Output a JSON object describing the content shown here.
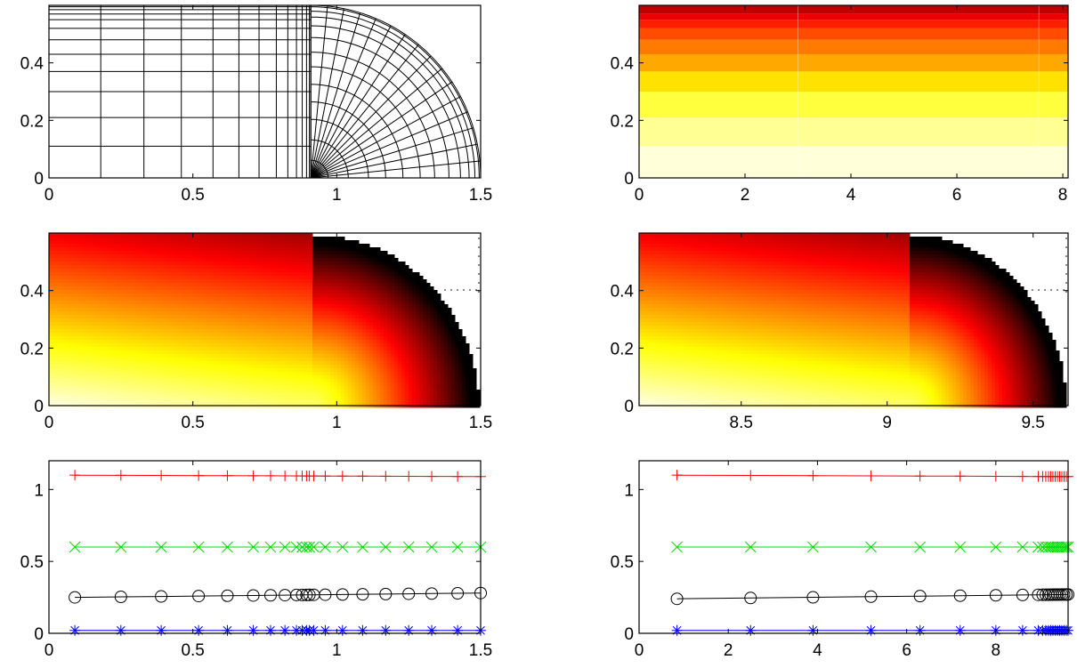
{
  "chart_data": [
    {
      "id": "mesh-left",
      "type": "mesh",
      "description_kind": "quadrilateral mesh: rectangular block plus quarter-ellipse fan",
      "xlim": [
        0,
        1.5
      ],
      "ylim": [
        0,
        0.6
      ],
      "x_ticks": [
        "0",
        "0.5",
        "1",
        "1.5"
      ],
      "x_tick_values": [
        0,
        0.5,
        1,
        1.5
      ],
      "y_ticks": [
        "0",
        "0.2",
        "0.4"
      ],
      "y_tick_values": [
        0,
        0.2,
        0.4
      ],
      "rect_x": [
        0,
        0.18,
        0.33,
        0.46,
        0.57,
        0.66,
        0.73,
        0.79,
        0.83,
        0.86,
        0.88,
        0.895,
        0.905,
        0.91
      ],
      "rect_y": [
        0,
        0.11,
        0.21,
        0.3,
        0.37,
        0.43,
        0.48,
        0.52,
        0.55,
        0.57,
        0.585,
        0.595,
        0.6
      ],
      "fan_center": [
        0.91,
        0
      ],
      "fan_radii": [
        0.06,
        0.13,
        0.2,
        0.26,
        0.32,
        0.38,
        0.43,
        0.48,
        0.52,
        0.55,
        0.57,
        0.585,
        0.59
      ],
      "fan_angles": 16,
      "line_color": "#000000"
    },
    {
      "id": "field-top-right",
      "type": "heatmap",
      "xlim": [
        0,
        8.1
      ],
      "ylim": [
        0,
        0.6
      ],
      "x_ticks": [
        "0",
        "2",
        "4",
        "6",
        "8"
      ],
      "x_tick_values": [
        0,
        2,
        4,
        6,
        8
      ],
      "y_ticks": [
        "0",
        "0.2",
        "0.4"
      ],
      "y_tick_values": [
        0,
        0.2,
        0.4
      ],
      "levels_y": [
        0,
        0.11,
        0.21,
        0.3,
        0.37,
        0.43,
        0.48,
        0.52,
        0.55,
        0.57,
        0.6
      ],
      "values": [
        0.02,
        0.1,
        0.2,
        0.32,
        0.42,
        0.5,
        0.58,
        0.66,
        0.74,
        0.82
      ],
      "colormap": "hot"
    },
    {
      "id": "field-mid-left",
      "type": "heatmap",
      "xlim": [
        0,
        1.5
      ],
      "ylim": [
        0,
        0.6
      ],
      "x_ticks": [
        "0",
        "0.5",
        "1",
        "1.5"
      ],
      "x_tick_values": [
        0,
        0.5,
        1,
        1.5
      ],
      "y_ticks": [
        "0",
        "0.2",
        "0.4"
      ],
      "y_tick_values": [
        0,
        0.2,
        0.4
      ],
      "colormap": "hot"
    },
    {
      "id": "field-mid-right",
      "type": "heatmap",
      "xlim": [
        8.15,
        9.62
      ],
      "ylim": [
        0,
        0.6
      ],
      "x_ticks": [
        "8.5",
        "9",
        "9.5"
      ],
      "x_tick_values": [
        8.5,
        9,
        9.5
      ],
      "y_ticks": [
        "0",
        "0.2",
        "0.4"
      ],
      "y_tick_values": [
        0,
        0.2,
        0.4
      ],
      "colormap": "hot"
    },
    {
      "id": "lines-bottom-left",
      "type": "line",
      "xlim": [
        0,
        1.5
      ],
      "ylim": [
        0,
        1.2
      ],
      "x_ticks": [
        "0",
        "0.5",
        "1",
        "1.5"
      ],
      "x_tick_values": [
        0,
        0.5,
        1,
        1.5
      ],
      "y_ticks": [
        "0",
        "0.5",
        "1"
      ],
      "y_tick_values": [
        0,
        0.5,
        1
      ],
      "x": [
        0.09,
        0.25,
        0.39,
        0.52,
        0.62,
        0.71,
        0.77,
        0.82,
        0.86,
        0.88,
        0.895,
        0.905,
        0.92,
        0.96,
        1.02,
        1.09,
        1.17,
        1.25,
        1.33,
        1.42,
        1.5
      ],
      "series": [
        {
          "marker": "plus",
          "color": "#ff0000",
          "y_start": 1.1,
          "y_end": 1.09
        },
        {
          "marker": "x",
          "color": "#00dd00",
          "y_start": 0.6,
          "y_end": 0.6
        },
        {
          "marker": "circle",
          "color": "#000000",
          "y_start": 0.25,
          "y_end": 0.28
        },
        {
          "marker": "star",
          "color": "#0000ff",
          "y_start": 0.02,
          "y_end": 0.02
        }
      ]
    },
    {
      "id": "lines-bottom-right",
      "type": "line",
      "xlim": [
        0,
        9.62
      ],
      "ylim": [
        0,
        1.2
      ],
      "x_ticks": [
        "0",
        "2",
        "4",
        "6",
        "8"
      ],
      "x_tick_values": [
        0,
        2,
        4,
        6,
        8
      ],
      "y_ticks": [
        "0",
        "0.5",
        "1"
      ],
      "y_tick_values": [
        0,
        0.5,
        1
      ],
      "x": [
        0.85,
        2.5,
        3.9,
        5.2,
        6.3,
        7.2,
        8.0,
        8.6,
        8.95,
        9.05,
        9.12,
        9.18,
        9.23,
        9.28,
        9.33,
        9.38,
        9.43,
        9.48,
        9.53,
        9.58,
        9.62
      ],
      "series": [
        {
          "marker": "plus",
          "color": "#ff0000",
          "y_start": 1.1,
          "y_end": 1.09
        },
        {
          "marker": "x",
          "color": "#00dd00",
          "y_start": 0.6,
          "y_end": 0.6
        },
        {
          "marker": "circle",
          "color": "#000000",
          "y_start": 0.24,
          "y_end": 0.27
        },
        {
          "marker": "star",
          "color": "#0000ff",
          "y_start": 0.02,
          "y_end": 0.02
        }
      ]
    }
  ]
}
